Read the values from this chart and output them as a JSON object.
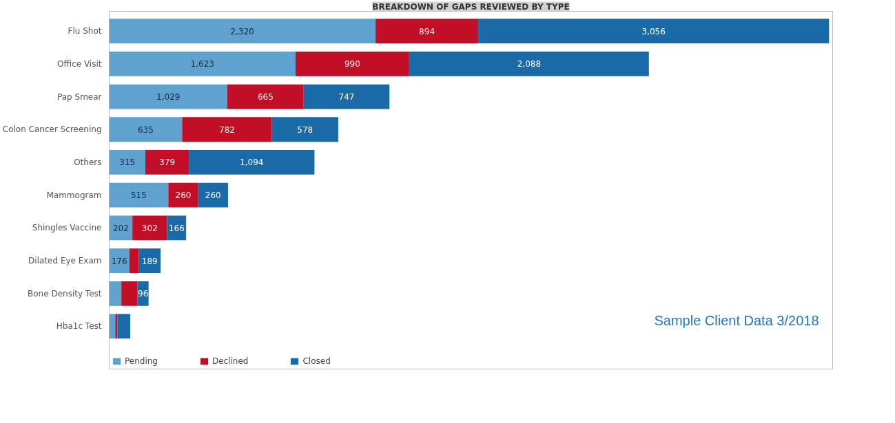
{
  "chart_data": {
    "type": "bar",
    "orientation": "horizontal",
    "stacked": true,
    "title": "BREAKDOWN OF GAPS REVIEWED BY TYPE",
    "categories": [
      "Flu Shot",
      "Office Visit",
      "Pap Smear",
      "Colon Cancer Screening",
      "Others",
      "Mammogram",
      "Shingles Vaccine",
      "Dilated Eye Exam",
      "Bone Density Test",
      "Hba1c Test"
    ],
    "series": [
      {
        "name": "Pending",
        "color": "#5fa2d0",
        "values": [
          2320,
          1623,
          1029,
          635,
          315,
          515,
          202,
          176,
          106,
          53
        ],
        "value_labels": [
          "2,320",
          "1,623",
          "1,029",
          "635",
          "315",
          "515",
          "202",
          "176",
          null,
          null
        ]
      },
      {
        "name": "Declined",
        "color": "#c00f26",
        "values": [
          894,
          990,
          665,
          782,
          379,
          260,
          302,
          82,
          141,
          18
        ],
        "value_labels": [
          "894",
          "990",
          "665",
          "782",
          "379",
          "260",
          "302",
          null,
          null,
          null
        ]
      },
      {
        "name": "Closed",
        "color": "#1a6aa8",
        "values": [
          3056,
          2088,
          747,
          578,
          1094,
          260,
          166,
          189,
          96,
          112
        ],
        "value_labels": [
          "3,056",
          "2,088",
          "747",
          "578",
          "1,094",
          "260",
          "166",
          "189",
          "96",
          null
        ]
      }
    ],
    "legend": "bottom",
    "grid": false,
    "annotations": [
      "Sample Client Data 3/2018"
    ]
  }
}
